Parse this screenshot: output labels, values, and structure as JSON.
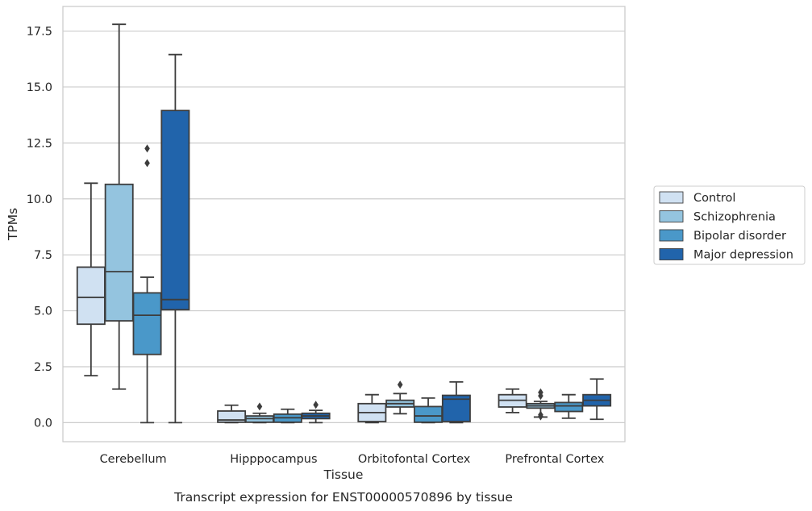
{
  "chart_data": {
    "type": "box",
    "xlabel": "Tissue",
    "ylabel": "TPMs",
    "caption": "Transcript expression for ENST00000570896 by tissue",
    "ylim": [
      -0.85,
      18.6
    ],
    "yticks": [
      "0.0",
      "2.5",
      "5.0",
      "7.5",
      "10.0",
      "12.5",
      "15.0",
      "17.5"
    ],
    "ytick_values": [
      0,
      2.5,
      5,
      7.5,
      10,
      12.5,
      15,
      17.5
    ],
    "categories": [
      "Cerebellum",
      "Hipppocampus",
      "Orbitofontal Cortex",
      "Prefrontal Cortex"
    ],
    "grid": "horizontal",
    "legend_position": "right",
    "series": [
      {
        "name": "Control",
        "color": "#d0e1f2",
        "boxes": [
          {
            "whislo": 2.1,
            "q1": 4.4,
            "med": 5.6,
            "q3": 6.95,
            "whishi": 10.7,
            "fliers": []
          },
          {
            "whislo": 0.0,
            "q1": 0.02,
            "med": 0.12,
            "q3": 0.52,
            "whishi": 0.78,
            "fliers": []
          },
          {
            "whislo": 0.0,
            "q1": 0.05,
            "med": 0.45,
            "q3": 0.85,
            "whishi": 1.25,
            "fliers": []
          },
          {
            "whislo": 0.45,
            "q1": 0.7,
            "med": 1.0,
            "q3": 1.25,
            "whishi": 1.5,
            "fliers": []
          }
        ]
      },
      {
        "name": "Schizophrenia",
        "color": "#94c4df",
        "boxes": [
          {
            "whislo": 1.5,
            "q1": 4.55,
            "med": 6.75,
            "q3": 10.65,
            "whishi": 17.8,
            "fliers": []
          },
          {
            "whislo": 0.0,
            "q1": 0.02,
            "med": 0.18,
            "q3": 0.3,
            "whishi": 0.42,
            "fliers": [
              0.72
            ]
          },
          {
            "whislo": 0.4,
            "q1": 0.7,
            "med": 0.85,
            "q3": 1.0,
            "whishi": 1.3,
            "fliers": [
              1.7
            ]
          },
          {
            "whislo": 0.25,
            "q1": 0.65,
            "med": 0.75,
            "q3": 0.85,
            "whishi": 0.95,
            "fliers": [
              1.35,
              1.2,
              0.35,
              0.28
            ]
          }
        ]
      },
      {
        "name": "Bipolar disorder",
        "color": "#4a98c9",
        "boxes": [
          {
            "whislo": 0.0,
            "q1": 3.05,
            "med": 4.8,
            "q3": 5.8,
            "whishi": 6.5,
            "fliers": [
              12.25,
              11.6
            ]
          },
          {
            "whislo": 0.0,
            "q1": 0.02,
            "med": 0.22,
            "q3": 0.38,
            "whishi": 0.6,
            "fliers": []
          },
          {
            "whislo": 0.0,
            "q1": 0.02,
            "med": 0.3,
            "q3": 0.72,
            "whishi": 1.1,
            "fliers": []
          },
          {
            "whislo": 0.2,
            "q1": 0.5,
            "med": 0.75,
            "q3": 0.9,
            "whishi": 1.25,
            "fliers": []
          }
        ]
      },
      {
        "name": "Major depression",
        "color": "#2164ab",
        "boxes": [
          {
            "whislo": 0.0,
            "q1": 5.05,
            "med": 5.5,
            "q3": 13.95,
            "whishi": 16.45,
            "fliers": []
          },
          {
            "whislo": 0.0,
            "q1": 0.18,
            "med": 0.3,
            "q3": 0.42,
            "whishi": 0.55,
            "fliers": [
              0.8
            ]
          },
          {
            "whislo": 0.0,
            "q1": 0.05,
            "med": 1.05,
            "q3": 1.22,
            "whishi": 1.82,
            "fliers": []
          },
          {
            "whislo": 0.15,
            "q1": 0.75,
            "med": 1.0,
            "q3": 1.25,
            "whishi": 1.95,
            "fliers": []
          }
        ]
      }
    ]
  }
}
